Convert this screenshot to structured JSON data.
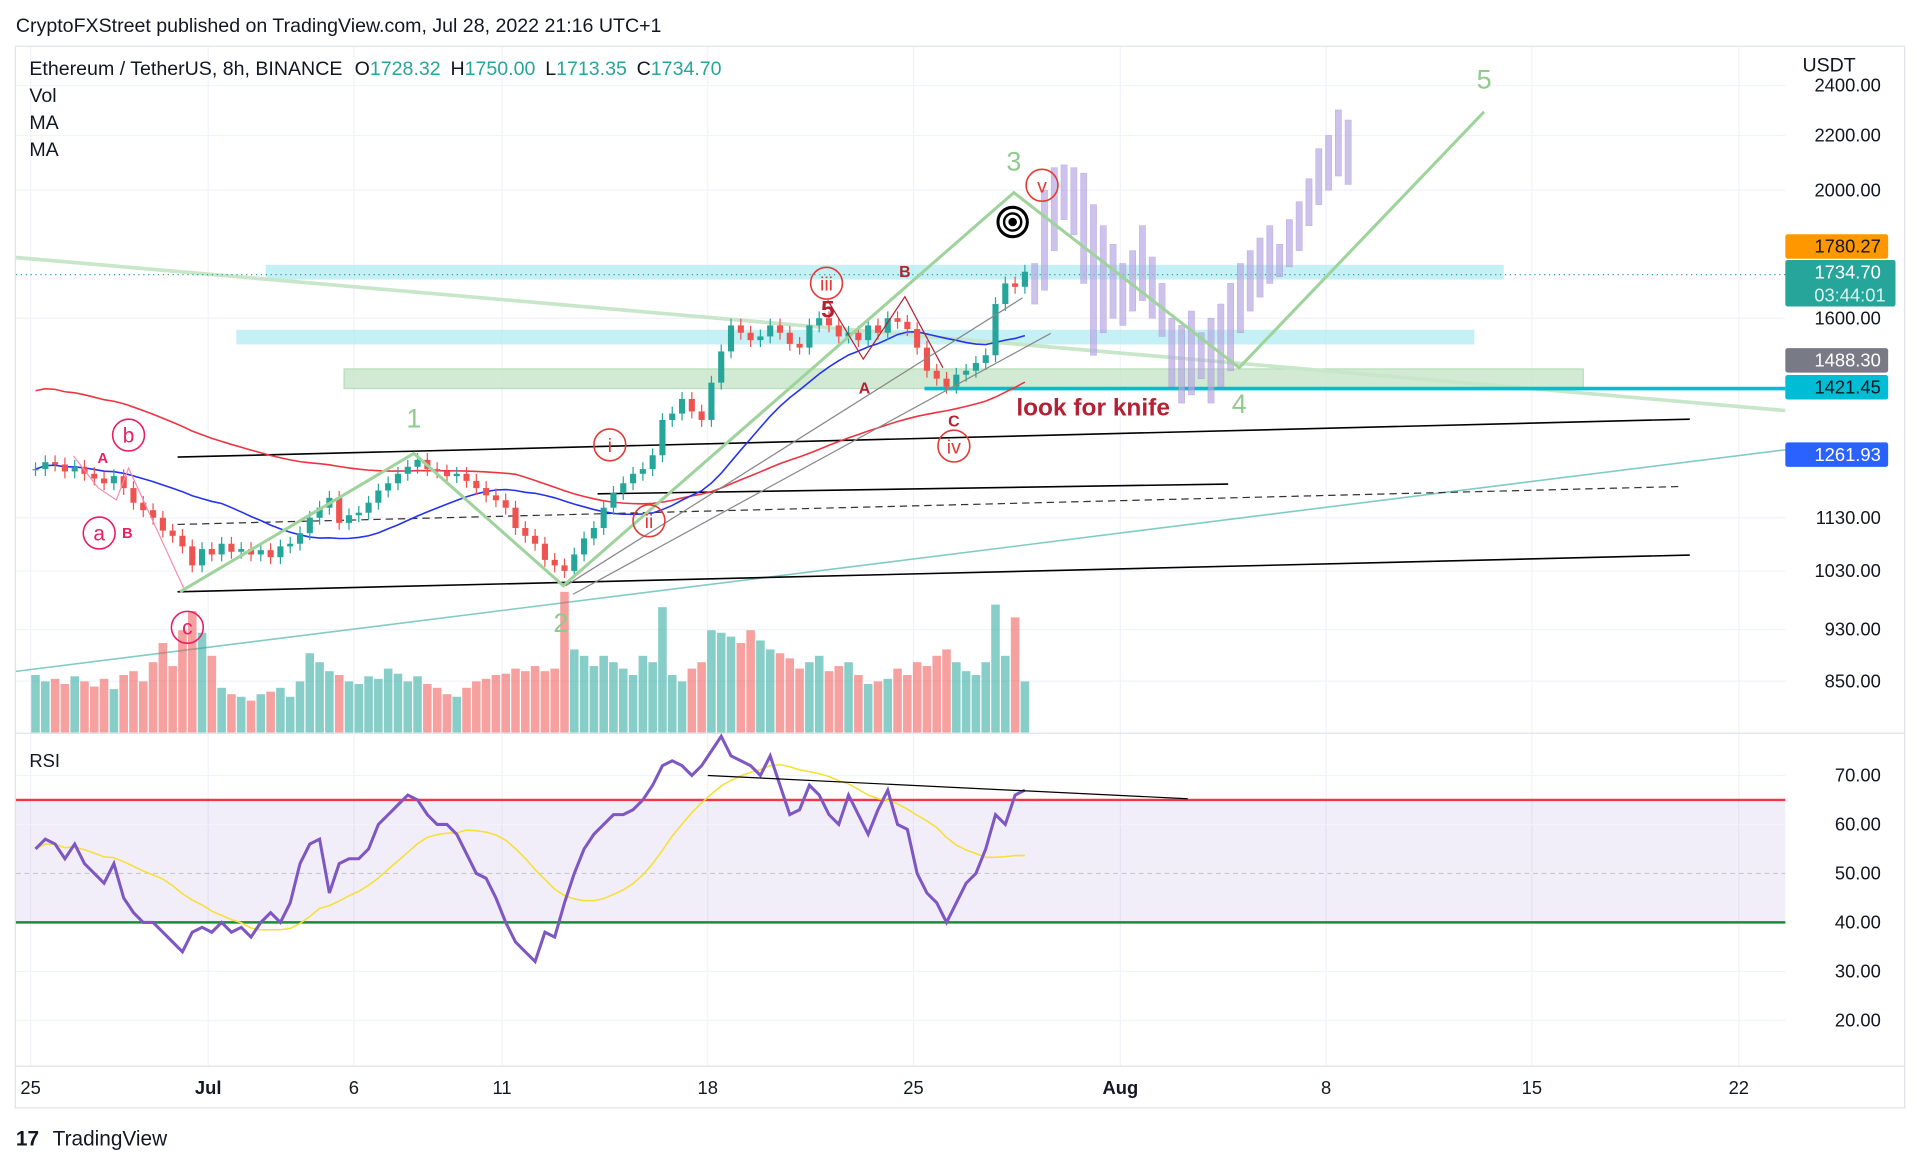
{
  "header": {
    "published": "CryptoFXStreet published on TradingView.com, Jul 28, 2022 21:16 UTC+1",
    "symbol": "Ethereum / TetherUS, 8h, BINANCE",
    "o_label": "O",
    "o": "1728.32",
    "h_label": "H",
    "h": "1750.00",
    "l_label": "L",
    "l": "1713.35",
    "c_label": "C",
    "c": "1734.70",
    "indicators": [
      "Vol",
      "MA",
      "MA"
    ],
    "rsi_label": "RSI"
  },
  "footer": {
    "brand": "TradingView"
  },
  "colors": {
    "up": "#26a69a",
    "down": "#ef5350",
    "ma_fast": "#2433f0",
    "ma_slow": "#ef3340",
    "rsi": "#7e57c2",
    "rsi_ma": "#f5e03a",
    "wave": "#9fd39c",
    "projection": "#b9a9e3",
    "annotation_red": "#b22234"
  },
  "chart_data": {
    "type": "candlestick",
    "price_axis": {
      "unit": "USDT",
      "scale": "log",
      "ticks": [
        "2400.00",
        "2200.00",
        "2000.00",
        "1600.00",
        "1130.00",
        "1030.00",
        "930.00",
        "850.00"
      ]
    },
    "price_badges": [
      {
        "value": "1780.27",
        "color": "#ff9800"
      },
      {
        "value": "1734.70",
        "sub": "03:44:01",
        "color": "#26a69a"
      },
      {
        "value": "1488.30",
        "color": "#787b86"
      },
      {
        "value": "1421.45",
        "color": "#00bcd4"
      },
      {
        "value": "1261.93",
        "color": "#2962ff"
      }
    ],
    "x_ticks": [
      "25",
      "Jul",
      "6",
      "11",
      "18",
      "25",
      "Aug",
      "8",
      "15",
      "22"
    ],
    "candle_start": "Jun 25",
    "interval": "8h",
    "closes": [
      1230,
      1245,
      1240,
      1225,
      1235,
      1220,
      1210,
      1200,
      1215,
      1190,
      1160,
      1145,
      1130,
      1105,
      1095,
      1075,
      1040,
      1070,
      1060,
      1080,
      1065,
      1070,
      1060,
      1068,
      1055,
      1075,
      1080,
      1100,
      1130,
      1150,
      1170,
      1120,
      1135,
      1140,
      1160,
      1185,
      1200,
      1220,
      1235,
      1250,
      1230,
      1225,
      1215,
      1220,
      1205,
      1190,
      1175,
      1165,
      1150,
      1110,
      1095,
      1080,
      1050,
      1040,
      1030,
      1060,
      1090,
      1110,
      1150,
      1180,
      1200,
      1220,
      1230,
      1260,
      1340,
      1355,
      1390,
      1360,
      1340,
      1430,
      1510,
      1580,
      1560,
      1540,
      1550,
      1580,
      1560,
      1530,
      1520,
      1580,
      1600,
      1580,
      1550,
      1560,
      1540,
      1580,
      1560,
      1600,
      1590,
      1570,
      1520,
      1460,
      1440,
      1420,
      1450,
      1460,
      1480,
      1500,
      1640,
      1700,
      1690,
      1735
    ],
    "volume": [
      45,
      40,
      42,
      38,
      44,
      40,
      36,
      42,
      34,
      45,
      48,
      40,
      55,
      70,
      52,
      80,
      95,
      78,
      60,
      35,
      30,
      28,
      25,
      30,
      32,
      35,
      28,
      40,
      62,
      55,
      48,
      45,
      40,
      38,
      44,
      42,
      50,
      46,
      40,
      44,
      38,
      35,
      30,
      28,
      35,
      40,
      42,
      45,
      46,
      50,
      48,
      52,
      48,
      50,
      110,
      65,
      60,
      52,
      60,
      55,
      50,
      45,
      60,
      55,
      98,
      45,
      40,
      50,
      55,
      80,
      78,
      75,
      70,
      80,
      72,
      65,
      62,
      58,
      50,
      55,
      60,
      48,
      52,
      55,
      45,
      38,
      40,
      42,
      50,
      45,
      55,
      52,
      60,
      65,
      55,
      48,
      45,
      55,
      100,
      60,
      90,
      40
    ],
    "rsi": {
      "ticks": [
        "70.00",
        "60.00",
        "50.00",
        "40.00",
        "30.00",
        "20.00"
      ],
      "upper": 65,
      "lower": 40,
      "middle": 50,
      "values": [
        55,
        57,
        56,
        53,
        56,
        52,
        50,
        48,
        52,
        45,
        42,
        40,
        40,
        38,
        36,
        34,
        38,
        39,
        38,
        40,
        38,
        39,
        37,
        40,
        42,
        40,
        44,
        52,
        56,
        57,
        46,
        52,
        53,
        53,
        55,
        60,
        62,
        64,
        66,
        65,
        62,
        60,
        60,
        58,
        54,
        50,
        49,
        45,
        40,
        36,
        34,
        32,
        38,
        37,
        44,
        50,
        55,
        58,
        60,
        62,
        62,
        63,
        65,
        68,
        72,
        73,
        72,
        70,
        72,
        75,
        78,
        74,
        73,
        72,
        70,
        74,
        68,
        62,
        63,
        68,
        66,
        62,
        60,
        66,
        62,
        58,
        63,
        67,
        60,
        59,
        50,
        46,
        44,
        40,
        44,
        48,
        50,
        55,
        62,
        60,
        66,
        67
      ]
    },
    "projection_ranges": [
      [
        1640,
        1760
      ],
      [
        1680,
        2000
      ],
      [
        1800,
        2080
      ],
      [
        1900,
        2090
      ],
      [
        1850,
        2080
      ],
      [
        1700,
        2060
      ],
      [
        1500,
        1950
      ],
      [
        1560,
        1880
      ],
      [
        1600,
        1820
      ],
      [
        1580,
        1760
      ],
      [
        1620,
        1800
      ],
      [
        1650,
        1880
      ],
      [
        1600,
        1780
      ],
      [
        1550,
        1700
      ],
      [
        1420,
        1600
      ],
      [
        1380,
        1580
      ],
      [
        1400,
        1620
      ],
      [
        1440,
        1560
      ],
      [
        1380,
        1600
      ],
      [
        1420,
        1640
      ],
      [
        1460,
        1700
      ],
      [
        1560,
        1760
      ],
      [
        1620,
        1800
      ],
      [
        1660,
        1840
      ],
      [
        1700,
        1880
      ],
      [
        1720,
        1820
      ],
      [
        1750,
        1900
      ],
      [
        1800,
        1960
      ],
      [
        1880,
        2040
      ],
      [
        1950,
        2150
      ],
      [
        2000,
        2200
      ],
      [
        2050,
        2300
      ],
      [
        2020,
        2260
      ]
    ],
    "annotations": {
      "waves": [
        "1",
        "2",
        "3",
        "4",
        "5"
      ],
      "circled": [
        "b",
        "a",
        "c",
        "i",
        "ii",
        "iii",
        "iv",
        "v"
      ],
      "letters": [
        "A",
        "B",
        "A",
        "B",
        "5",
        "C"
      ],
      "note": "look for knife"
    }
  }
}
